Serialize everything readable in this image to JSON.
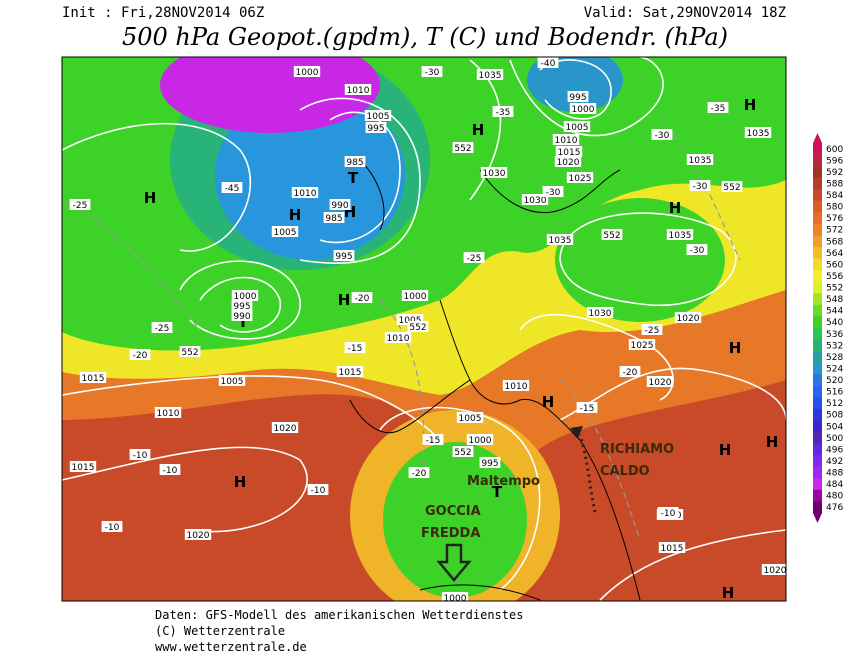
{
  "header": {
    "init": "Init : Fri,28NOV2014 06Z",
    "valid": "Valid: Sat,29NOV2014 18Z",
    "title": "500 hPa Geopot.(gpdm), T (C) und Bodendr. (hPa)"
  },
  "colorbar": [
    {
      "label": "600",
      "color": "#d0105a"
    },
    {
      "label": "596",
      "color": "#b42840"
    },
    {
      "label": "592",
      "color": "#a03028"
    },
    {
      "label": "588",
      "color": "#b43c28"
    },
    {
      "label": "584",
      "color": "#c84a28"
    },
    {
      "label": "580",
      "color": "#dc5c28"
    },
    {
      "label": "576",
      "color": "#e66e28"
    },
    {
      "label": "572",
      "color": "#f08228"
    },
    {
      "label": "568",
      "color": "#f0a028"
    },
    {
      "label": "564",
      "color": "#f0be28"
    },
    {
      "label": "560",
      "color": "#f0dc28"
    },
    {
      "label": "556",
      "color": "#f0f028"
    },
    {
      "label": "552",
      "color": "#dcf028"
    },
    {
      "label": "548",
      "color": "#a0e628"
    },
    {
      "label": "544",
      "color": "#64dc28"
    },
    {
      "label": "540",
      "color": "#3cd228"
    },
    {
      "label": "536",
      "color": "#28c850"
    },
    {
      "label": "532",
      "color": "#28b478"
    },
    {
      "label": "528",
      "color": "#28a0a0"
    },
    {
      "label": "524",
      "color": "#2896c8"
    },
    {
      "label": "520",
      "color": "#2878e6"
    },
    {
      "label": "516",
      "color": "#2864f0"
    },
    {
      "label": "512",
      "color": "#2850f0"
    },
    {
      "label": "508",
      "color": "#283cdc"
    },
    {
      "label": "504",
      "color": "#3c28c8"
    },
    {
      "label": "500",
      "color": "#5028b4"
    },
    {
      "label": "496",
      "color": "#6428dc"
    },
    {
      "label": "492",
      "color": "#8228f0"
    },
    {
      "label": "488",
      "color": "#a028f0"
    },
    {
      "label": "484",
      "color": "#c828f0"
    },
    {
      "label": "480",
      "color": "#a000a0"
    },
    {
      "label": "476",
      "color": "#6e006e"
    }
  ],
  "map_labels": [
    "1000",
    "1010",
    "1005",
    "995",
    "985",
    "T",
    "1010",
    "H",
    "H",
    "990",
    "985",
    "995",
    "1005",
    "H",
    "T",
    "1000",
    "995",
    "990",
    "H",
    "1000",
    "1005",
    "1010",
    "1035",
    "995",
    "1000",
    "1005",
    "1010",
    "1015",
    "1020",
    "1025",
    "1030",
    "1030",
    "1035",
    "1030",
    "1025",
    "1020",
    "1020",
    "1035",
    "1035",
    "1035",
    "H",
    "H",
    "H",
    "H",
    "H",
    "H",
    "H",
    "1015",
    "1005",
    "1015",
    "1010",
    "1020",
    "1015",
    "1020",
    "1010",
    "1005",
    "1000",
    "995",
    "T",
    "H",
    "H",
    "1020",
    "1010",
    "1015",
    "-10",
    "-10",
    "-10",
    "-10",
    "-10",
    "-15",
    "-15",
    "-20",
    "-20",
    "-25",
    "-25",
    "-30",
    "-35",
    "-40",
    "-45",
    "-30",
    "-25",
    "-20",
    "-15",
    "-20",
    "-25",
    "-30",
    "-30",
    "-35",
    "-30",
    "552",
    "552",
    "552",
    "552",
    "552",
    "552",
    "1000"
  ],
  "annotations": {
    "maltempo": "Maltempo",
    "goccia": "GOCCIA",
    "fredda": "FREDDA",
    "richiamo": "RICHIAMO",
    "caldo": "CALDO"
  },
  "footer": [
    "Daten: GFS-Modell des amerikanischen Wetterdienstes",
    "(C) Wetterzentrale",
    "www.wetterzentrale.de"
  ]
}
